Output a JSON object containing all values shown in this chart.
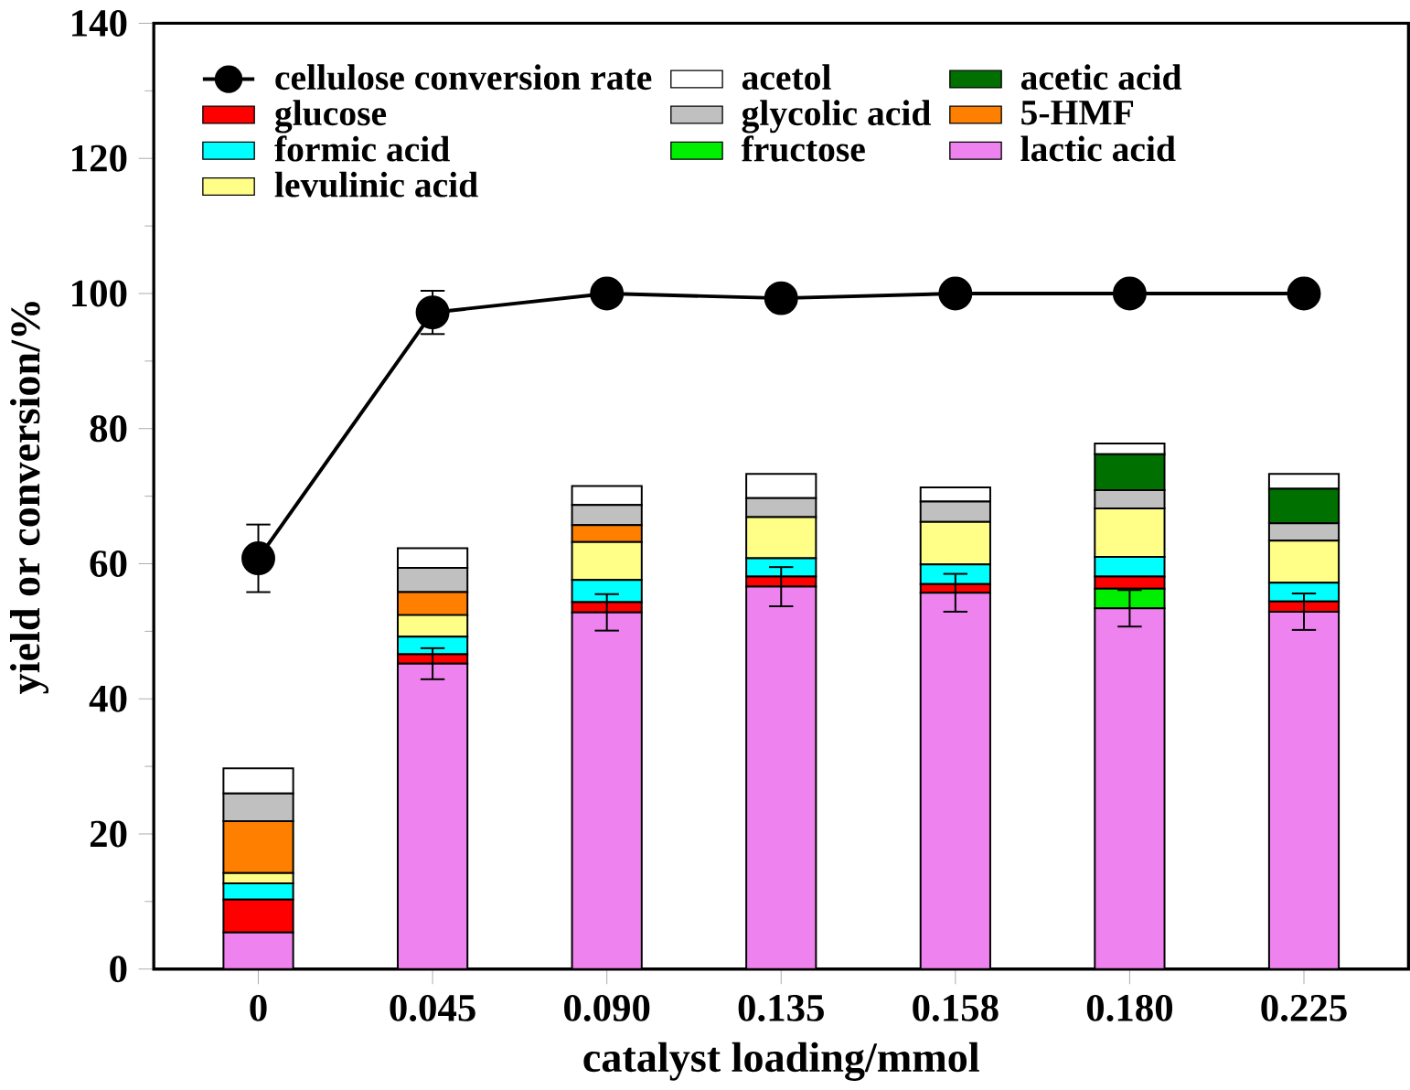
{
  "chart_data": {
    "type": "bar",
    "stacked": true,
    "xlabel": "catalyst loading/mmol",
    "ylabel": "yield or conversion/%",
    "categories": [
      "0",
      "0.045",
      "0.090",
      "0.135",
      "0.158",
      "0.180",
      "0.225"
    ],
    "ylim": [
      0,
      140
    ],
    "yticks": [
      0,
      20,
      40,
      60,
      80,
      100,
      120,
      140
    ],
    "legend": "top left",
    "series": [
      {
        "name": "lactic acid",
        "color": "#ee82ee",
        "values": [
          5.4,
          45.2,
          52.8,
          56.6,
          55.7,
          53.4,
          52.9
        ],
        "errors": [
          null,
          2.3,
          2.7,
          2.9,
          2.8,
          2.7,
          2.7
        ]
      },
      {
        "name": "fructose",
        "color": "#00ee00",
        "values": [
          0,
          0,
          0,
          0,
          0,
          2.9,
          0
        ]
      },
      {
        "name": "glucose",
        "color": "#ff0000",
        "values": [
          4.9,
          1.4,
          1.5,
          1.5,
          1.3,
          1.8,
          1.5
        ]
      },
      {
        "name": "formic acid",
        "color": "#00ffff",
        "values": [
          2.4,
          2.6,
          3.3,
          2.7,
          2.9,
          2.9,
          2.8
        ]
      },
      {
        "name": "levulinic acid",
        "color": "#ffff88",
        "values": [
          1.5,
          3.2,
          5.6,
          6.1,
          6.3,
          7.2,
          6.2
        ]
      },
      {
        "name": "5-HMF",
        "color": "#ff8000",
        "values": [
          7.7,
          3.4,
          2.5,
          0,
          0,
          0,
          0
        ]
      },
      {
        "name": "glycolic acid",
        "color": "#c0c0c0",
        "values": [
          4.1,
          3.6,
          3.0,
          2.8,
          3.0,
          2.7,
          2.6
        ]
      },
      {
        "name": "acetic acid",
        "color": "#007000",
        "values": [
          0,
          0,
          0,
          0,
          0,
          5.3,
          5.1
        ]
      },
      {
        "name": "acetol",
        "color": "#ffffff",
        "values": [
          3.7,
          2.9,
          2.8,
          3.6,
          2.1,
          1.6,
          2.2
        ]
      },
      {
        "name": "cellulose conversion rate",
        "type": "line",
        "marker": "circle",
        "line_style": "solid",
        "color": "#000000",
        "values": [
          60.8,
          97.2,
          100,
          99.3,
          100,
          100,
          100
        ],
        "errors": [
          5.0,
          3.2,
          null,
          null,
          null,
          null,
          null
        ]
      }
    ]
  }
}
